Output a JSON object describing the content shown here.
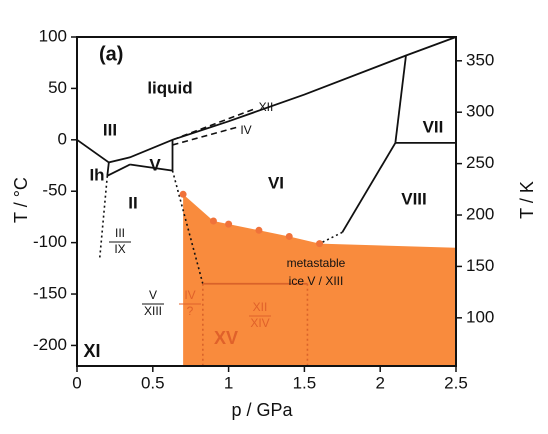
{
  "chart_data": {
    "type": "phase-diagram",
    "panel_label": "(a)",
    "x_label": "p / GPa",
    "y_label": "T / °C",
    "y2_label": "T / K",
    "xlim": [
      0,
      2.5
    ],
    "xticks": [
      0,
      0.5,
      1,
      1.5,
      2,
      2.5
    ],
    "ylim": [
      -220,
      100
    ],
    "yticks": [
      -200,
      -150,
      -100,
      -50,
      0,
      50,
      100
    ],
    "y2lim": [
      53.15,
      373.15
    ],
    "y2ticks": [
      100,
      150,
      200,
      250,
      300,
      350
    ],
    "region": {
      "color": "#f98b3d",
      "x": [
        0.7,
        0.9,
        1.0,
        1.2,
        1.4,
        1.6,
        2.5
      ],
      "y": [
        -53,
        -79,
        -82,
        -88,
        -94,
        -101,
        -105
      ]
    },
    "points": {
      "color": "#f0723a",
      "x": [
        0.7,
        0.9,
        1.0,
        1.2,
        1.4,
        1.6
      ],
      "y": [
        -53,
        -79,
        -82,
        -88,
        -94,
        -101
      ]
    },
    "lines": [
      {
        "style": "solid",
        "color": "#111111",
        "x": [
          0,
          0.21,
          0.35,
          0.63,
          1.0,
          1.5,
          2.17,
          2.5
        ],
        "y": [
          0,
          -22,
          -17,
          0,
          18,
          44,
          82,
          100
        ]
      },
      {
        "style": "solid",
        "color": "#111111",
        "x": [
          0.21,
          0.2
        ],
        "y": [
          -22,
          -35
        ]
      },
      {
        "style": "solid",
        "color": "#111111",
        "x": [
          0.2,
          0.35
        ],
        "y": [
          -35,
          -24
        ]
      },
      {
        "style": "solid",
        "color": "#111111",
        "x": [
          0.35,
          0.63
        ],
        "y": [
          -24,
          -30
        ]
      },
      {
        "style": "solid",
        "color": "#111111",
        "x": [
          0.63,
          0.63
        ],
        "y": [
          0,
          -30
        ]
      },
      {
        "style": "dotted",
        "color": "#111111",
        "x": [
          0.63,
          0.83
        ],
        "y": [
          -30,
          -140
        ]
      },
      {
        "style": "dotted",
        "color": "#111111",
        "x": [
          0.2,
          0.15
        ],
        "y": [
          -35,
          -115
        ]
      },
      {
        "style": "dashed",
        "color": "#111111",
        "x": [
          0.63,
          1.17
        ],
        "y": [
          0,
          30
        ]
      },
      {
        "style": "dashed",
        "color": "#111111",
        "x": [
          0.63,
          1.05
        ],
        "y": [
          -5,
          12
        ]
      },
      {
        "style": "solid",
        "color": "#111111",
        "x": [
          2.17,
          2.1
        ],
        "y": [
          82,
          -3
        ]
      },
      {
        "style": "solid",
        "color": "#111111",
        "x": [
          2.1,
          2.5
        ],
        "y": [
          -3,
          -3
        ]
      },
      {
        "style": "solid",
        "color": "#111111",
        "x": [
          2.1,
          1.75
        ],
        "y": [
          -3,
          -90
        ]
      },
      {
        "style": "dotted",
        "color": "#111111",
        "x": [
          1.75,
          1.6
        ],
        "y": [
          -90,
          -101
        ]
      },
      {
        "style": "solid",
        "color": "#d9622a",
        "x": [
          0.83,
          1.52
        ],
        "y": [
          -140,
          -140
        ]
      },
      {
        "style": "dotted",
        "color": "#d9622a",
        "x": [
          0.83,
          0.83
        ],
        "y": [
          -140,
          -220
        ]
      },
      {
        "style": "dotted",
        "color": "#d9622a",
        "x": [
          1.52,
          1.52
        ],
        "y": [
          -140,
          -220
        ]
      }
    ],
    "annotations": [
      "liquid",
      "III",
      "Ih",
      "V",
      "II",
      "VI",
      "VII",
      "VIII",
      "XII",
      "IV",
      "metastable",
      "ice V / XIII",
      "XV",
      "XI"
    ],
    "fractions": [
      [
        "III",
        "IX"
      ],
      [
        "V",
        "XIII"
      ],
      [
        "IV",
        "?"
      ],
      [
        "XII",
        "XIV"
      ]
    ]
  }
}
